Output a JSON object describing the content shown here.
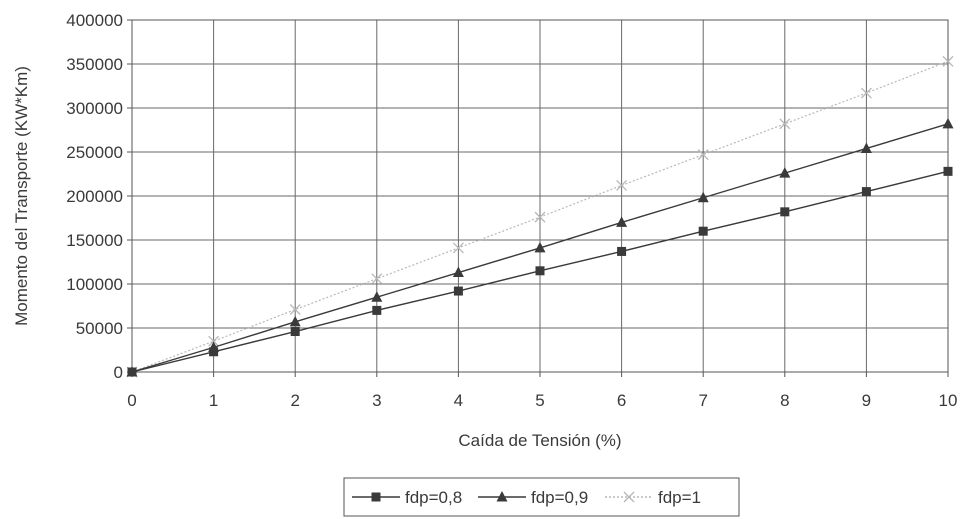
{
  "chart_data": {
    "type": "line",
    "title": "",
    "xlabel": "Caída de Tensión (%)",
    "ylabel": "Momento del Transporte (KW*Km)",
    "x": [
      0,
      1,
      2,
      3,
      4,
      5,
      6,
      7,
      8,
      9,
      10
    ],
    "xlim": [
      0,
      10
    ],
    "ylim": [
      0,
      400000
    ],
    "xticks": [
      "0",
      "1",
      "2",
      "3",
      "4",
      "5",
      "6",
      "7",
      "8",
      "9",
      "10"
    ],
    "yticks": [
      "0",
      "50000",
      "100000",
      "150000",
      "200000",
      "250000",
      "300000",
      "350000",
      "400000"
    ],
    "grid": true,
    "legend_position": "bottom",
    "series": [
      {
        "name": "fdp=0,8",
        "marker": "square",
        "color": "#3a3a3a",
        "values": [
          0,
          23000,
          46000,
          70000,
          92000,
          115000,
          137000,
          160000,
          182000,
          205000,
          228000
        ]
      },
      {
        "name": "fdp=0,9",
        "marker": "triangle",
        "color": "#3a3a3a",
        "values": [
          0,
          28000,
          57000,
          85000,
          113000,
          141000,
          170000,
          198000,
          226000,
          254000,
          282000
        ]
      },
      {
        "name": "fdp=1",
        "marker": "x",
        "color": "#b8b8b8",
        "values": [
          0,
          35000,
          71000,
          106000,
          141000,
          176000,
          212000,
          247000,
          282000,
          317000,
          353000
        ]
      }
    ]
  }
}
